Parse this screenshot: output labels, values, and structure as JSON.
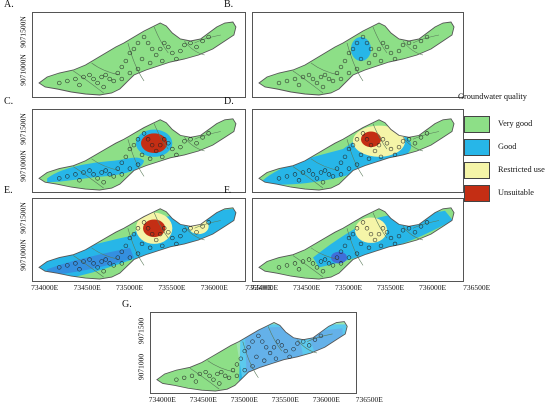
{
  "colors": {
    "very_good": "#8ddf87",
    "good": "#27b6e8",
    "restricted": "#f5f5a8",
    "unsuitable": "#c42e14",
    "outline": "#555555",
    "contour": "#5a7a5a",
    "blue_deep": "#3f6fd9",
    "cyan_edge": "#bff0fa"
  },
  "panels": [
    {
      "letter": "A.",
      "y_ticks": [
        "9071500N",
        "9071000N"
      ],
      "x_ticks": [],
      "overlay": "none"
    },
    {
      "letter": "B.",
      "y_ticks": [],
      "x_ticks": [],
      "overlay": "small_good"
    },
    {
      "letter": "C.",
      "y_ticks": [
        "9071500N",
        "9071000N"
      ],
      "x_ticks": [],
      "overlay": "c_map"
    },
    {
      "letter": "D.",
      "y_ticks": [],
      "x_ticks": [],
      "overlay": "d_map"
    },
    {
      "letter": "E.",
      "y_ticks": [
        "9071500N",
        "9071000N"
      ],
      "x_ticks": [
        "734000E",
        "734500E",
        "735000E",
        "735500E",
        "736000E",
        "736500E"
      ],
      "overlay": "e_map"
    },
    {
      "letter": "F.",
      "y_ticks": [],
      "x_ticks": [
        "734000E",
        "734500E",
        "735000E",
        "735500E",
        "736000E",
        "736500E"
      ],
      "overlay": "f_map"
    },
    {
      "letter": "G.",
      "y_ticks": [
        "9071500",
        "9071000"
      ],
      "x_ticks": [
        "734000E",
        "734500E",
        "735000E",
        "735500E",
        "736000E",
        "736500E"
      ],
      "overlay": "g_map"
    }
  ],
  "legend": {
    "title": "Groundwater quality",
    "items": [
      {
        "label": "Very good",
        "color": "#8ddf87"
      },
      {
        "label": "Good",
        "color": "#27b6e8"
      },
      {
        "label": "Restricted use",
        "color": "#f5f5a8"
      },
      {
        "label": "Unsuitable",
        "color": "#c42e14"
      }
    ]
  }
}
